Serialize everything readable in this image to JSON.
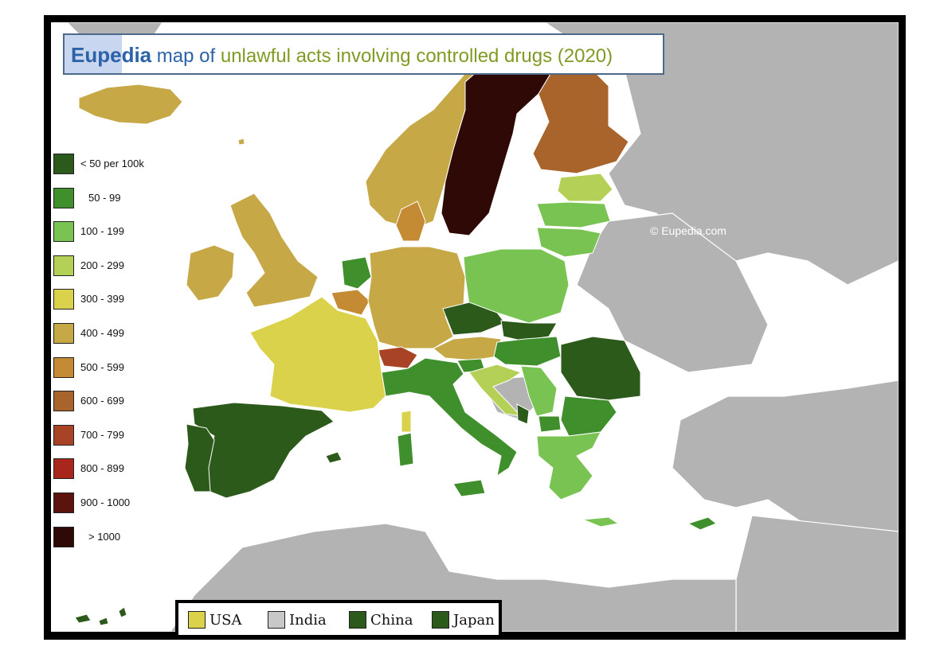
{
  "title": {
    "brand": "Eupedia",
    "middle": " map of ",
    "topic": "unlawful acts involving controlled drugs (2020)"
  },
  "legend": [
    {
      "label": "< 50 per 100k",
      "color": "#2c5a1a"
    },
    {
      "label": "50 - 99",
      "color": "#3f8f2c"
    },
    {
      "label": "100 - 199",
      "color": "#79c353"
    },
    {
      "label": "200 - 299",
      "color": "#b5d057"
    },
    {
      "label": "300 - 399",
      "color": "#d9d24a"
    },
    {
      "label": "400 - 499",
      "color": "#c6a847"
    },
    {
      "label": "500 - 599",
      "color": "#c48a34"
    },
    {
      "label": "600 - 699",
      "color": "#a8642a"
    },
    {
      "label": "700 - 799",
      "color": "#a84425"
    },
    {
      "label": "800 - 899",
      "color": "#a8261c"
    },
    {
      "label": "900 - 1000",
      "color": "#5a140d"
    },
    {
      "label": "> 1000",
      "color": "#2e0906"
    }
  ],
  "comparison": [
    {
      "label": "USA",
      "color": "#d9d24a"
    },
    {
      "label": "India",
      "color": "#c8c8c8"
    },
    {
      "label": "China",
      "color": "#2c5a1a"
    },
    {
      "label": "Japan",
      "color": "#2c5a1a"
    }
  ],
  "watermarks": {
    "main": "©  Eupedia.com",
    "small": "©  Eupedia.com"
  },
  "colors": {
    "land_outside": "#b3b3b3",
    "sea": "#ffffff",
    "frame": "#000000"
  }
}
